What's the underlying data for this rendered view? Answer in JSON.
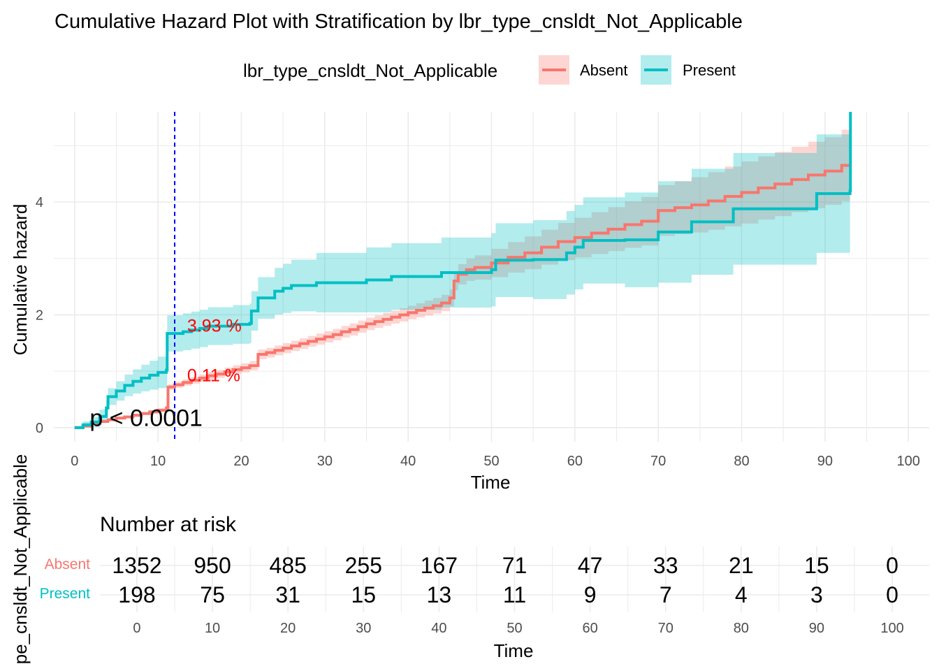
{
  "colors": {
    "absent": "#F8766D",
    "present": "#00BFC4",
    "absent_fill": "#F8766D",
    "present_fill": "#00BFC4",
    "grid": "#EBEBEB",
    "annotation": "#FF0000",
    "vline": "#0000FF",
    "text": "#000000",
    "tick_text": "#4D4D4D"
  },
  "chart_data": [
    {
      "type": "line",
      "title": "Cumulative Hazard Plot with Stratification by lbr_type_cnsldt_Not_Applicable",
      "xlabel": "Time",
      "ylabel": "Cumulative hazard",
      "xlim": [
        -2.5,
        102.5
      ],
      "ylim": [
        -0.25,
        5.6
      ],
      "x_ticks": [
        0,
        10,
        20,
        30,
        40,
        50,
        60,
        70,
        80,
        90,
        100
      ],
      "y_ticks": [
        0,
        2,
        4
      ],
      "grid": true,
      "legend": {
        "title": "lbr_type_cnsldt_Not_Applicable",
        "placement": "top",
        "entries": [
          "Absent",
          "Present"
        ]
      },
      "vline_x": 12,
      "annotations": [
        {
          "text": "3.93 %",
          "x": 13.5,
          "y": 1.8,
          "color": "red"
        },
        {
          "text": "0.11 %",
          "x": 13.5,
          "y": 0.92,
          "color": "red"
        }
      ],
      "pvalue": {
        "text": "p < 0.0001",
        "x": 1.8,
        "y": 0.15
      },
      "series": [
        {
          "name": "Absent",
          "step": [
            [
              0,
              0
            ],
            [
              1,
              0.03
            ],
            [
              2,
              0.07
            ],
            [
              3,
              0.11
            ],
            [
              4,
              0.14
            ],
            [
              5,
              0.17
            ],
            [
              6,
              0.19
            ],
            [
              7,
              0.22
            ],
            [
              8,
              0.25
            ],
            [
              9,
              0.28
            ],
            [
              10,
              0.31
            ],
            [
              11,
              0.35
            ],
            [
              11.2,
              0.72
            ],
            [
              12,
              0.76
            ],
            [
              13,
              0.8
            ],
            [
              14,
              0.84
            ],
            [
              15,
              0.88
            ],
            [
              16,
              0.92
            ],
            [
              17,
              0.95
            ],
            [
              18,
              0.99
            ],
            [
              19,
              1.03
            ],
            [
              20,
              1.06
            ],
            [
              21,
              1.1
            ],
            [
              22,
              1.3
            ],
            [
              23,
              1.33
            ],
            [
              24,
              1.37
            ],
            [
              25,
              1.41
            ],
            [
              26,
              1.45
            ],
            [
              27,
              1.49
            ],
            [
              28,
              1.53
            ],
            [
              29,
              1.57
            ],
            [
              30,
              1.61
            ],
            [
              31,
              1.65
            ],
            [
              32,
              1.7
            ],
            [
              33,
              1.74
            ],
            [
              34,
              1.79
            ],
            [
              35,
              1.84
            ],
            [
              36,
              1.88
            ],
            [
              37,
              1.92
            ],
            [
              38,
              1.96
            ],
            [
              39,
              2.0
            ],
            [
              40,
              2.04
            ],
            [
              41,
              2.08
            ],
            [
              42,
              2.12
            ],
            [
              43,
              2.16
            ],
            [
              44,
              2.21
            ],
            [
              45,
              2.3
            ],
            [
              45.5,
              2.6
            ],
            [
              46,
              2.72
            ],
            [
              47,
              2.8
            ],
            [
              48,
              2.84
            ],
            [
              50,
              2.92
            ],
            [
              52,
              3.02
            ],
            [
              54,
              3.1
            ],
            [
              56,
              3.2
            ],
            [
              58,
              3.3
            ],
            [
              60,
              3.37
            ],
            [
              62,
              3.45
            ],
            [
              64,
              3.52
            ],
            [
              66,
              3.6
            ],
            [
              68,
              3.66
            ],
            [
              70,
              3.85
            ],
            [
              72,
              3.9
            ],
            [
              74,
              3.95
            ],
            [
              76,
              4.02
            ],
            [
              78,
              4.1
            ],
            [
              80,
              4.17
            ],
            [
              82,
              4.25
            ],
            [
              84,
              4.32
            ],
            [
              86,
              4.4
            ],
            [
              88,
              4.48
            ],
            [
              90,
              4.55
            ],
            [
              92,
              4.65
            ],
            [
              93,
              4.65
            ]
          ],
          "ci_width": [
            [
              0,
              0.02
            ],
            [
              11,
              0.03
            ],
            [
              11.2,
              0.05
            ],
            [
              20,
              0.08
            ],
            [
              30,
              0.1
            ],
            [
              40,
              0.12
            ],
            [
              45,
              0.15
            ],
            [
              46,
              0.18
            ],
            [
              50,
              0.25
            ],
            [
              60,
              0.35
            ],
            [
              70,
              0.45
            ],
            [
              80,
              0.55
            ],
            [
              90,
              0.6
            ],
            [
              93,
              0.65
            ]
          ]
        },
        {
          "name": "Present",
          "step": [
            [
              0,
              0
            ],
            [
              1,
              0.05
            ],
            [
              2,
              0.1
            ],
            [
              3,
              0.2
            ],
            [
              3.8,
              0.35
            ],
            [
              4,
              0.55
            ],
            [
              5,
              0.65
            ],
            [
              6,
              0.75
            ],
            [
              7,
              0.82
            ],
            [
              8,
              0.88
            ],
            [
              9,
              0.93
            ],
            [
              10,
              0.98
            ],
            [
              11,
              1.02
            ],
            [
              11.1,
              1.67
            ],
            [
              13,
              1.7
            ],
            [
              14,
              1.73
            ],
            [
              15,
              1.76
            ],
            [
              16,
              1.8
            ],
            [
              19,
              1.83
            ],
            [
              21,
              1.85
            ],
            [
              21.2,
              2.07
            ],
            [
              22,
              2.3
            ],
            [
              24,
              2.42
            ],
            [
              25,
              2.47
            ],
            [
              26,
              2.52
            ],
            [
              29,
              2.57
            ],
            [
              35,
              2.62
            ],
            [
              38,
              2.68
            ],
            [
              44,
              2.75
            ],
            [
              50,
              2.8
            ],
            [
              50.5,
              2.97
            ],
            [
              55,
              2.98
            ],
            [
              59,
              3.1
            ],
            [
              60,
              3.2
            ],
            [
              61,
              3.32
            ],
            [
              66,
              3.33
            ],
            [
              70,
              3.47
            ],
            [
              74,
              3.65
            ],
            [
              79,
              3.88
            ],
            [
              89,
              4.15
            ],
            [
              93,
              4.2
            ],
            [
              93.05,
              5.6
            ]
          ],
          "ci_width": [
            [
              0,
              0.03
            ],
            [
              4,
              0.15
            ],
            [
              11,
              0.3
            ],
            [
              11.1,
              0.32
            ],
            [
              21.2,
              0.35
            ],
            [
              30,
              0.55
            ],
            [
              40,
              0.6
            ],
            [
              50,
              0.65
            ],
            [
              60,
              0.75
            ],
            [
              70,
              0.9
            ],
            [
              80,
              1.0
            ],
            [
              89,
              1.05
            ],
            [
              93,
              1.1
            ]
          ]
        }
      ]
    },
    {
      "type": "table",
      "title": "Number at risk",
      "xlabel": "Time",
      "ylabel": "pe_cnsldt_Not_Applicable",
      "x_ticks": [
        0,
        10,
        20,
        30,
        40,
        50,
        60,
        70,
        80,
        90,
        100
      ],
      "rows": [
        {
          "name": "Absent",
          "values": [
            "1352",
            "950",
            "485",
            "255",
            "167",
            "71",
            "47",
            "33",
            "21",
            "15",
            "0"
          ]
        },
        {
          "name": "Present",
          "values": [
            "198",
            "75",
            "31",
            "15",
            "13",
            "11",
            "9",
            "7",
            "4",
            "3",
            "0"
          ]
        }
      ]
    }
  ]
}
